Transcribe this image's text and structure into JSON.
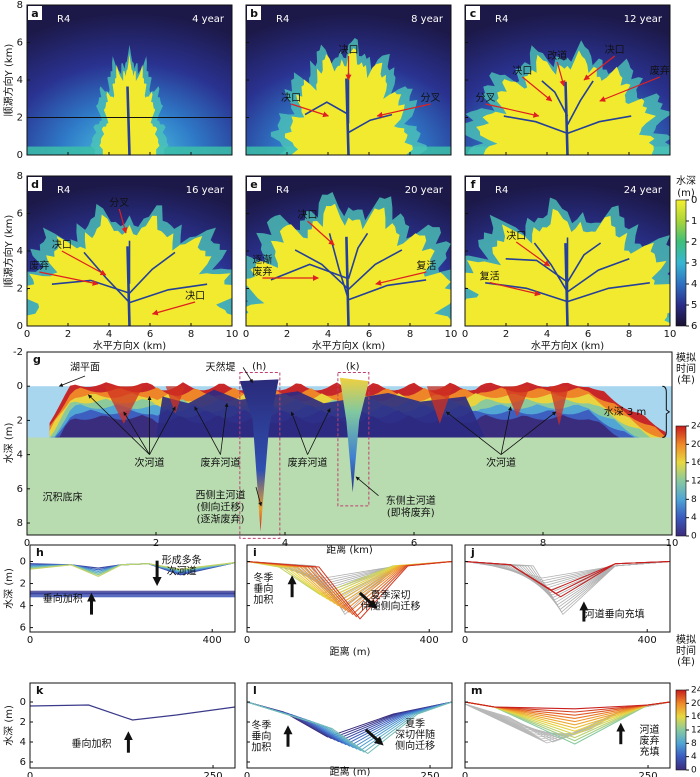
{
  "maps": {
    "xlabel": "水平方向X (km)",
    "ylabel": "顺源方向Y (km)",
    "xlim": [
      0,
      10
    ],
    "ylim": [
      0,
      8
    ],
    "xticks": [
      0,
      2,
      4,
      6,
      8,
      10
    ],
    "yticks": [
      0,
      2,
      4,
      6,
      8
    ],
    "panels": [
      {
        "letter": "a",
        "run": "R4",
        "time": "4 year",
        "notes": []
      },
      {
        "letter": "b",
        "run": "R4",
        "time": "8 year",
        "notes": [
          [
            "决口"
          ],
          [
            "决口"
          ],
          [
            "分叉"
          ]
        ]
      },
      {
        "letter": "c",
        "run": "R4",
        "time": "12 year",
        "notes": [
          [
            "分叉"
          ],
          [
            "决口"
          ],
          [
            "改道"
          ],
          [
            "决口"
          ],
          [
            "废弃"
          ]
        ]
      },
      {
        "letter": "d",
        "run": "R4",
        "time": "16 year",
        "notes": [
          [
            "分叉"
          ],
          [
            "决口"
          ],
          [
            "废弃"
          ],
          [
            "决口"
          ]
        ]
      },
      {
        "letter": "e",
        "run": "R4",
        "time": "20 year",
        "notes": [
          [
            "决口"
          ],
          [
            "逐渐",
            "废弃"
          ],
          [
            "复活"
          ]
        ]
      },
      {
        "letter": "f",
        "run": "R4",
        "time": "24 year",
        "notes": [
          [
            "决口"
          ],
          [
            "复活"
          ]
        ]
      }
    ]
  },
  "depth_colorbar": {
    "title": "水深",
    "unit": "(m)",
    "lim": [
      0,
      6
    ],
    "ticks": [
      0,
      1,
      2,
      3,
      4,
      5,
      6
    ]
  },
  "section": {
    "letter": "g",
    "ylabel": "水深 (m)",
    "xlabel": "距离 (km)",
    "xlim": [
      0,
      10
    ],
    "ylim": [
      -2,
      8.7
    ],
    "xticks": [
      0,
      2,
      4,
      6,
      8,
      10
    ],
    "yticks": [
      -2,
      0,
      2,
      4,
      6,
      8
    ],
    "water_depth": "水深 3 m",
    "notes": [
      [
        "湖平面"
      ],
      [
        "天然堤"
      ],
      [
        "(h)"
      ],
      [
        "(k)"
      ],
      [
        "次河道"
      ],
      [
        "废弃河道"
      ],
      [
        "废弃河道"
      ],
      [
        "次河道"
      ],
      [
        "沉积底床"
      ],
      [
        "西侧主河道",
        "(侧向迁移)",
        "(逐渐废弃)"
      ],
      [
        "东侧主河道",
        "(即将废弃)"
      ]
    ]
  },
  "time_colorbar": {
    "title": [
      "模拟",
      "时间",
      "(年)"
    ],
    "lim": [
      0,
      24
    ],
    "ticks": [
      0,
      4,
      8,
      12,
      16,
      20,
      24
    ]
  },
  "zooms": {
    "ylabel": "水深 (m)",
    "xlabel": "距离 (m)",
    "rows": [
      {
        "ylim": [
          -1.5,
          6.4
        ],
        "yticks": [
          0,
          2,
          4,
          6
        ],
        "xlim": [
          0,
          450
        ],
        "xticks": [
          0,
          400
        ],
        "panels": [
          {
            "letter": "h",
            "notes": [
              [
                "形成多条",
                "次河道"
              ],
              [
                "垂向加积"
              ]
            ]
          },
          {
            "letter": "i",
            "notes": [
              [
                "冬季",
                "垂向",
                "加积"
              ],
              [
                "夏季深切",
                "伴随侧向迁移"
              ]
            ]
          },
          {
            "letter": "j",
            "notes": [
              [
                "河道垂向充填"
              ]
            ]
          }
        ]
      },
      {
        "ylim": [
          -1.9,
          6.6
        ],
        "yticks": [
          0,
          2,
          4,
          6
        ],
        "xlim": [
          0,
          280
        ],
        "xticks": [
          0,
          250
        ],
        "panels": [
          {
            "letter": "k",
            "notes": [
              [
                "垂向加积"
              ]
            ]
          },
          {
            "letter": "l",
            "notes": [
              [
                "冬季",
                "垂向",
                "加积"
              ],
              [
                "夏季",
                "深切伴随",
                "侧向迁移"
              ]
            ]
          },
          {
            "letter": "m",
            "notes": [
              [
                "河道",
                "废弃",
                "充填"
              ]
            ]
          }
        ]
      }
    ]
  }
}
